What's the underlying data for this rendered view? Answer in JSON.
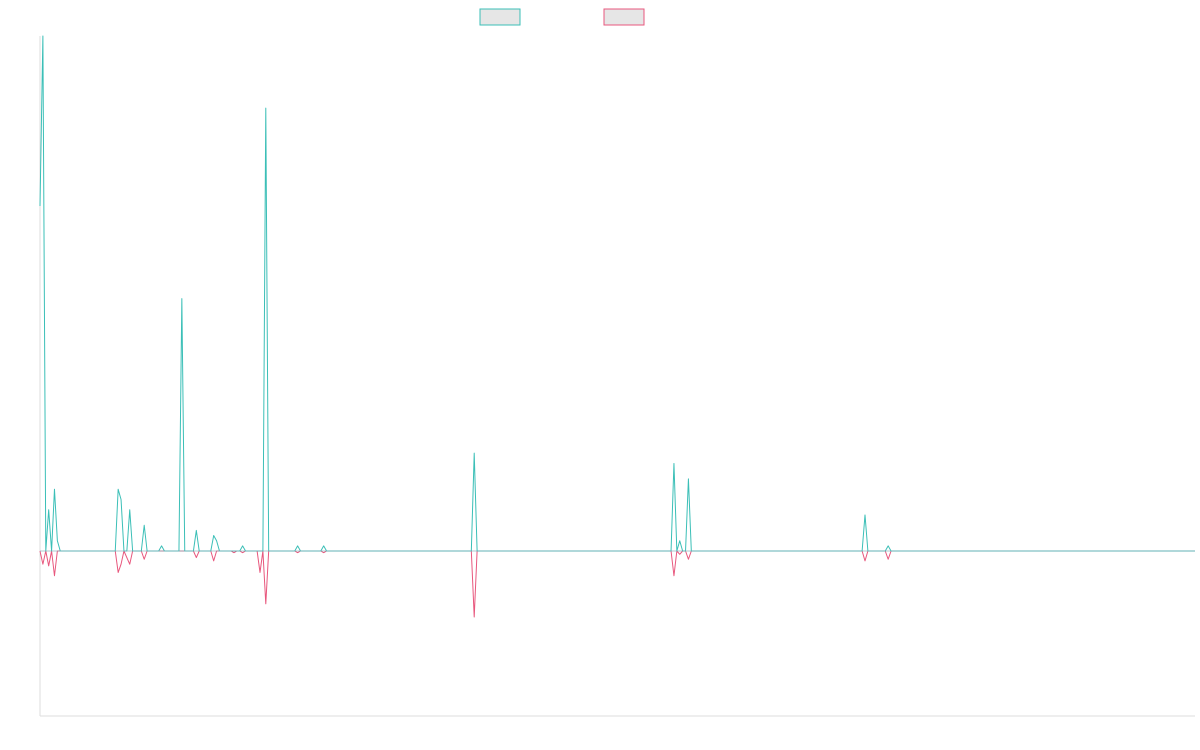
{
  "chart_data": {
    "type": "line",
    "title": "",
    "xlabel": "",
    "ylabel": "",
    "grid": false,
    "legend_position": "top-center",
    "ylim": [
      -1.0,
      1.0
    ],
    "x_count": 400,
    "series": [
      {
        "color": "#3bbfb7",
        "fill": "#e6e6e6",
        "points": [
          [
            0,
            0.67
          ],
          [
            1,
            1.0
          ],
          [
            2,
            0.0
          ],
          [
            3,
            0.08
          ],
          [
            4,
            0.0
          ],
          [
            5,
            0.12
          ],
          [
            6,
            0.02
          ],
          [
            7,
            0.0
          ],
          [
            26,
            0.0
          ],
          [
            27,
            0.12
          ],
          [
            28,
            0.1
          ],
          [
            29,
            0.0
          ],
          [
            30,
            0.0
          ],
          [
            31,
            0.08
          ],
          [
            32,
            0.0
          ],
          [
            35,
            0.0
          ],
          [
            36,
            0.05
          ],
          [
            37,
            0.0
          ],
          [
            41,
            0.0
          ],
          [
            42,
            0.01
          ],
          [
            43,
            0.0
          ],
          [
            48,
            0.0
          ],
          [
            49,
            0.49
          ],
          [
            50,
            0.0
          ],
          [
            53,
            0.0
          ],
          [
            54,
            0.04
          ],
          [
            55,
            0.0
          ],
          [
            59,
            0.0
          ],
          [
            60,
            0.03
          ],
          [
            61,
            0.02
          ],
          [
            62,
            0.0
          ],
          [
            69,
            0.0
          ],
          [
            70,
            0.01
          ],
          [
            71,
            0.0
          ],
          [
            77,
            0.0
          ],
          [
            78,
            0.86
          ],
          [
            79,
            0.0
          ],
          [
            88,
            0.0
          ],
          [
            89,
            0.01
          ],
          [
            90,
            0.0
          ],
          [
            97,
            0.0
          ],
          [
            98,
            0.01
          ],
          [
            99,
            0.0
          ],
          [
            149,
            0.0
          ],
          [
            150,
            0.19
          ],
          [
            151,
            0.0
          ],
          [
            218,
            0.0
          ],
          [
            219,
            0.17
          ],
          [
            220,
            0.0
          ],
          [
            221,
            0.02
          ],
          [
            222,
            0.0
          ],
          [
            223,
            0.0
          ],
          [
            224,
            0.14
          ],
          [
            225,
            0.0
          ],
          [
            284,
            0.0
          ],
          [
            285,
            0.07
          ],
          [
            286,
            0.0
          ],
          [
            292,
            0.0
          ],
          [
            293,
            0.01
          ],
          [
            294,
            0.0
          ],
          [
            399,
            0.0
          ]
        ]
      },
      {
        "color": "#e8577d",
        "fill": "#e6e6e6",
        "points": [
          [
            0,
            0.0
          ],
          [
            1,
            -0.08
          ],
          [
            2,
            0.0
          ],
          [
            3,
            -0.09
          ],
          [
            4,
            0.0
          ],
          [
            5,
            -0.15
          ],
          [
            6,
            0.0
          ],
          [
            26,
            0.0
          ],
          [
            27,
            -0.13
          ],
          [
            28,
            -0.08
          ],
          [
            29,
            0.0
          ],
          [
            31,
            -0.08
          ],
          [
            32,
            0.0
          ],
          [
            35,
            0.0
          ],
          [
            36,
            -0.05
          ],
          [
            37,
            0.0
          ],
          [
            53,
            0.0
          ],
          [
            54,
            -0.04
          ],
          [
            55,
            0.0
          ],
          [
            59,
            0.0
          ],
          [
            60,
            -0.06
          ],
          [
            61,
            0.0
          ],
          [
            66,
            0.0
          ],
          [
            67,
            -0.01
          ],
          [
            68,
            0.0
          ],
          [
            69,
            0.0
          ],
          [
            70,
            -0.01
          ],
          [
            71,
            0.0
          ],
          [
            75,
            0.0
          ],
          [
            76,
            -0.13
          ],
          [
            77,
            0.0
          ],
          [
            78,
            -0.32
          ],
          [
            79,
            0.0
          ],
          [
            88,
            0.0
          ],
          [
            89,
            -0.01
          ],
          [
            90,
            0.0
          ],
          [
            97,
            0.0
          ],
          [
            98,
            -0.01
          ],
          [
            99,
            0.0
          ],
          [
            149,
            0.0
          ],
          [
            150,
            -0.4
          ],
          [
            151,
            0.0
          ],
          [
            218,
            0.0
          ],
          [
            219,
            -0.15
          ],
          [
            220,
            0.0
          ],
          [
            221,
            -0.02
          ],
          [
            222,
            0.0
          ],
          [
            223,
            0.0
          ],
          [
            224,
            -0.05
          ],
          [
            225,
            0.0
          ],
          [
            284,
            0.0
          ],
          [
            285,
            -0.06
          ],
          [
            286,
            0.0
          ],
          [
            292,
            0.0
          ],
          [
            293,
            -0.05
          ],
          [
            294,
            0.0
          ],
          [
            399,
            0.0
          ]
        ]
      }
    ],
    "axis_color": "#dddddd"
  }
}
